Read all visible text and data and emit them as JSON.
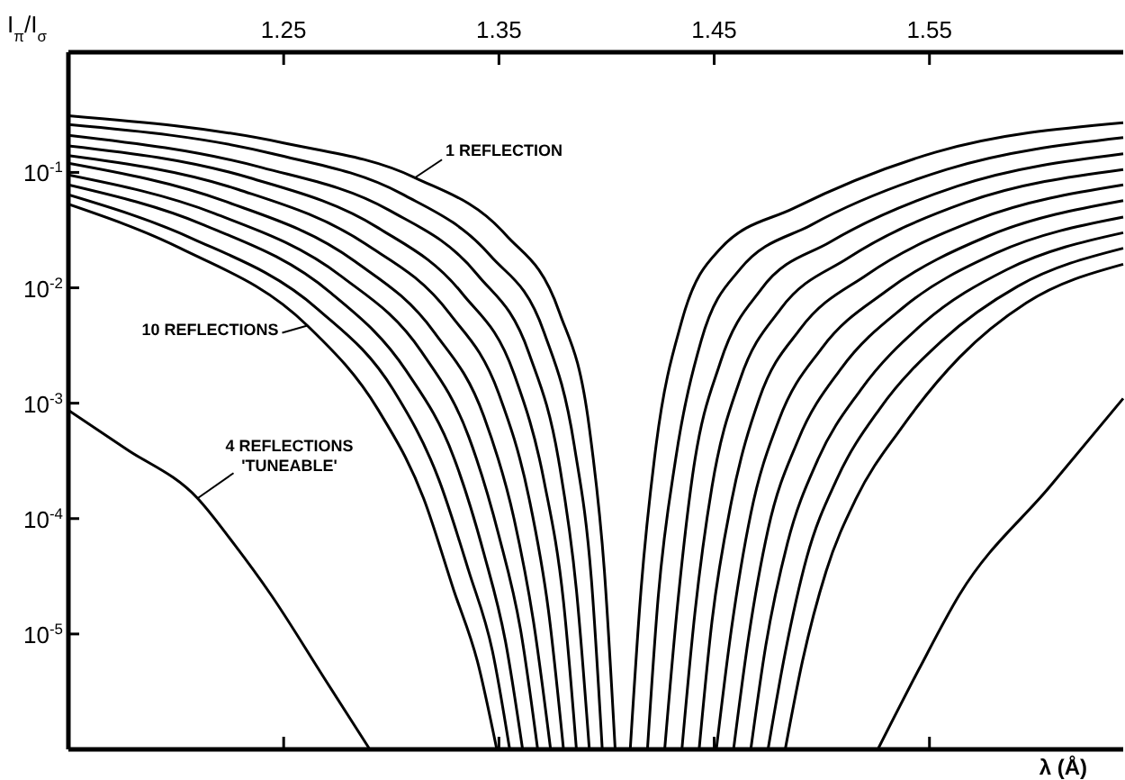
{
  "chart_data": {
    "type": "line",
    "ylabel": "I$_{π}$/I$_{σ}$",
    "xlabel": "λ (Å)",
    "log": "y",
    "xlim": [
      1.15,
      1.64
    ],
    "xticks": [
      1.25,
      1.35,
      1.45,
      1.55
    ],
    "ylim": [
      1e-06,
      1.1
    ],
    "yticks": [
      {
        "value": 0.1,
        "label": "10$^{-1}$"
      },
      {
        "value": 0.01,
        "label": "10$^{-2}$"
      },
      {
        "value": 0.001,
        "label": "10$^{-3}$"
      },
      {
        "value": 0.0001,
        "label": "10$^{-4}$"
      },
      {
        "value": 1e-05,
        "label": "10$^{-5}$"
      }
    ],
    "annotations": [
      {
        "text": "1 REFLECTION",
        "x": 1.311,
        "y": 0.09
      },
      {
        "text": "10 REFLECTIONS",
        "x": 1.261,
        "y": 0.0047
      },
      {
        "text": "4 REFLECTIONS\n'TUNEABLE'",
        "x": 1.21,
        "y": 0.00015
      }
    ],
    "series": [
      {
        "color": "#000000",
        "x": [
          1.15,
          1.25,
          1.311,
          1.353,
          1.378,
          1.392,
          1.399,
          1.404
        ],
        "values": [
          0.31,
          0.18,
          0.09,
          0.029,
          0.0062,
          0.00061,
          3.5e-05,
          1e-06
        ]
      },
      {
        "color": "#000000",
        "x": [
          1.15,
          1.245,
          1.305,
          1.346,
          1.371,
          1.385,
          1.393,
          1.398
        ],
        "values": [
          0.26,
          0.145,
          0.065,
          0.019,
          0.0041,
          0.00043,
          2.9e-05,
          1e-06
        ]
      },
      {
        "color": "#000000",
        "x": [
          1.15,
          1.24,
          1.299,
          1.34,
          1.364,
          1.378,
          1.386,
          1.392
        ],
        "values": [
          0.21,
          0.11,
          0.047,
          0.013,
          0.0027,
          0.0003,
          2.4e-05,
          1e-06
        ]
      },
      {
        "color": "#000000",
        "x": [
          1.15,
          1.234,
          1.294,
          1.333,
          1.357,
          1.371,
          1.38,
          1.386
        ],
        "values": [
          0.17,
          0.09,
          0.033,
          0.0089,
          0.0018,
          0.00021,
          1.9e-05,
          1e-06
        ]
      },
      {
        "color": "#000000",
        "x": [
          1.15,
          1.229,
          1.288,
          1.327,
          1.35,
          1.364,
          1.373,
          1.38
        ],
        "values": [
          0.14,
          0.071,
          0.024,
          0.006,
          0.0012,
          0.00015,
          1.6e-05,
          1e-06
        ]
      },
      {
        "color": "#000000",
        "x": [
          1.15,
          1.223,
          1.283,
          1.32,
          1.343,
          1.357,
          1.366,
          1.374
        ],
        "values": [
          0.12,
          0.056,
          0.017,
          0.0041,
          0.00077,
          0.0001,
          1.3e-05,
          1e-06
        ]
      },
      {
        "color": "#000000",
        "x": [
          1.15,
          1.218,
          1.277,
          1.314,
          1.336,
          1.35,
          1.36,
          1.368
        ],
        "values": [
          0.095,
          0.044,
          0.0125,
          0.0028,
          0.00051,
          7.1e-05,
          1.1e-05,
          1e-06
        ]
      },
      {
        "color": "#000000",
        "x": [
          1.15,
          1.213,
          1.272,
          1.307,
          1.329,
          1.343,
          1.353,
          1.361
        ],
        "values": [
          0.078,
          0.035,
          0.009,
          0.0019,
          0.00034,
          5e-05,
          8.7e-06,
          1e-06
        ]
      },
      {
        "color": "#000000",
        "x": [
          1.15,
          1.207,
          1.266,
          1.301,
          1.322,
          1.336,
          1.347,
          1.355
        ],
        "values": [
          0.064,
          0.027,
          0.0065,
          0.0013,
          0.00022,
          3.5e-05,
          7.1e-06,
          1e-06
        ]
      },
      {
        "color": "#000000",
        "x": [
          1.15,
          1.202,
          1.261,
          1.294,
          1.315,
          1.329,
          1.34,
          1.349
        ],
        "values": [
          0.053,
          0.022,
          0.0047,
          0.00087,
          0.00015,
          2.4e-05,
          5.8e-06,
          1e-06
        ]
      },
      {
        "color": "#000000",
        "x": [
          1.411,
          1.416,
          1.423,
          1.435,
          1.453,
          1.487,
          1.553,
          1.64
        ],
        "values": [
          1e-06,
          2.4e-05,
          0.00043,
          0.0052,
          0.022,
          0.049,
          0.15,
          0.27
        ]
      },
      {
        "color": "#000000",
        "x": [
          1.419,
          1.424,
          1.432,
          1.444,
          1.462,
          1.495,
          1.558,
          1.64
        ],
        "values": [
          1e-06,
          2.1e-05,
          0.00032,
          0.0035,
          0.0145,
          0.035,
          0.106,
          0.2
        ]
      },
      {
        "color": "#000000",
        "x": [
          1.427,
          1.433,
          1.44,
          1.453,
          1.472,
          1.504,
          1.563,
          1.64
        ],
        "values": [
          1e-06,
          1.8e-05,
          0.00024,
          0.0023,
          0.0098,
          0.025,
          0.076,
          0.145
        ]
      },
      {
        "color": "#000000",
        "x": [
          1.435,
          1.441,
          1.449,
          1.462,
          1.481,
          1.512,
          1.567,
          1.64
        ],
        "values": [
          1e-06,
          1.5e-05,
          0.00019,
          0.0016,
          0.0066,
          0.018,
          0.055,
          0.106
        ]
      },
      {
        "color": "#000000",
        "x": [
          1.443,
          1.449,
          1.458,
          1.471,
          1.49,
          1.521,
          1.572,
          1.64
        ],
        "values": [
          1e-06,
          1.3e-05,
          0.00014,
          0.0011,
          0.0044,
          0.013,
          0.039,
          0.078
        ]
      },
      {
        "color": "#000000",
        "x": [
          1.451,
          1.458,
          1.467,
          1.48,
          1.5,
          1.53,
          1.577,
          1.64
        ],
        "values": [
          1e-06,
          1.1e-05,
          0.00011,
          0.00071,
          0.003,
          0.0094,
          0.028,
          0.057
        ]
      },
      {
        "color": "#000000",
        "x": [
          1.459,
          1.466,
          1.475,
          1.489,
          1.509,
          1.538,
          1.581,
          1.64
        ],
        "values": [
          1e-06,
          9.4e-06,
          8e-05,
          0.00048,
          0.002,
          0.0068,
          0.02,
          0.041
        ]
      },
      {
        "color": "#000000",
        "x": [
          1.467,
          1.474,
          1.484,
          1.498,
          1.518,
          1.547,
          1.586,
          1.64
        ],
        "values": [
          1e-06,
          8e-06,
          6.1e-05,
          0.00032,
          0.0013,
          0.0049,
          0.0144,
          0.03
        ]
      },
      {
        "color": "#000000",
        "x": [
          1.475,
          1.483,
          1.493,
          1.507,
          1.527,
          1.556,
          1.591,
          1.64
        ],
        "values": [
          1e-06,
          6.9e-06,
          4.6e-05,
          0.00022,
          0.0009,
          0.0035,
          0.0103,
          0.022
        ]
      },
      {
        "color": "#000000",
        "x": [
          1.483,
          1.491,
          1.502,
          1.516,
          1.537,
          1.564,
          1.595,
          1.64
        ],
        "values": [
          1e-06,
          5.8e-06,
          3.5e-05,
          0.00015,
          0.00061,
          0.0025,
          0.0074,
          0.016
        ]
      },
      {
        "color": "#000000",
        "x": [
          1.15,
          1.177,
          1.21,
          1.227,
          1.244,
          1.269,
          1.29
        ],
        "values": [
          0.00087,
          0.0004,
          0.00015,
          6e-05,
          2.2e-05,
          4.1e-06,
          1e-06
        ]
      },
      {
        "color": "#000000",
        "x": [
          1.526,
          1.545,
          1.564,
          1.606,
          1.64
        ],
        "values": [
          1e-06,
          4.9e-06,
          2.2e-05,
          0.00019,
          0.0011
        ]
      }
    ]
  }
}
